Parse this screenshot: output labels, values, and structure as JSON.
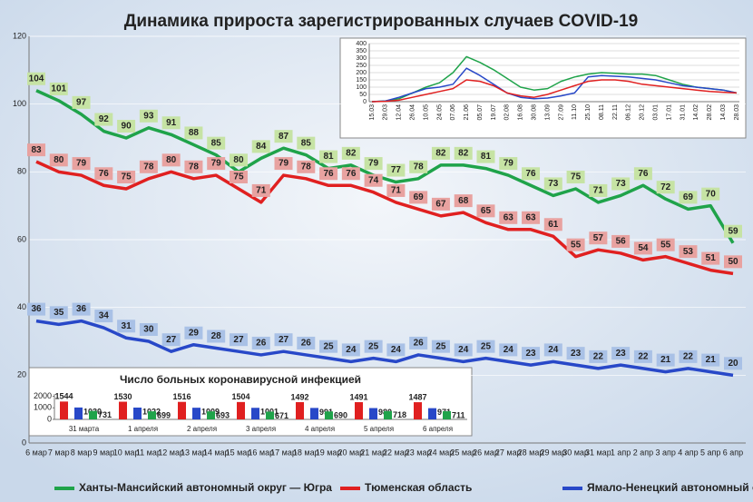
{
  "chart_data": [
    {
      "type": "line",
      "title": "Динамика прироста зарегистрированных случаев COVID-19",
      "categories": [
        "6 мар",
        "7 мар",
        "8 мар",
        "9 мар",
        "10 мар",
        "11 мар",
        "12 мар",
        "13 мар",
        "14 мар",
        "15 мар",
        "16 мар",
        "17 мар",
        "18 мар",
        "19 мар",
        "20 мар",
        "21 мар",
        "22 мар",
        "23 мар",
        "24 мар",
        "25 мар",
        "26 мар",
        "27 мар",
        "28 мар",
        "29 мар",
        "30 мар",
        "31 мар",
        "1 апр",
        "2 апр",
        "3 апр",
        "4 апр",
        "5 апр",
        "6 апр"
      ],
      "series": [
        {
          "name": "Ханты-Мансийский автономный округ — Югра",
          "color": "#1fa34a",
          "label_color": "#c6e3a4",
          "values": [
            104,
            101,
            97,
            92,
            90,
            93,
            91,
            88,
            85,
            80,
            84,
            87,
            85,
            81,
            82,
            79,
            77,
            78,
            82,
            82,
            81,
            79,
            76,
            73,
            75,
            71,
            73,
            76,
            72,
            69,
            70,
            59
          ]
        },
        {
          "name": "Тюменская область",
          "color": "#e02020",
          "label_color": "#e8a2a0",
          "values": [
            83,
            80,
            79,
            76,
            75,
            78,
            80,
            78,
            79,
            75,
            71,
            79,
            78,
            76,
            76,
            74,
            71,
            69,
            67,
            68,
            65,
            63,
            63,
            61,
            55,
            57,
            56,
            54,
            55,
            53,
            51,
            50
          ]
        },
        {
          "name": "Ямало-Ненецкий автономный округ",
          "color": "#2848c8",
          "label_color": "#a9c1e6",
          "values": [
            36,
            35,
            36,
            34,
            31,
            30,
            27,
            29,
            28,
            27,
            26,
            27,
            26,
            25,
            24,
            25,
            24,
            26,
            25,
            24,
            25,
            24,
            23,
            24,
            23,
            22,
            23,
            22,
            21,
            22,
            21,
            20
          ]
        }
      ],
      "ylim": [
        0,
        120
      ],
      "yticks": [
        0,
        20,
        40,
        60,
        80,
        100,
        120
      ],
      "grid": true,
      "legend": "bottom"
    },
    {
      "type": "line",
      "categories": [
        "15.03",
        "29.03",
        "12.04",
        "26.04",
        "10.05",
        "24.05",
        "07.06",
        "21.06",
        "05.07",
        "19.07",
        "02.08",
        "16.08",
        "30.08",
        "13.09",
        "27.09",
        "11.10",
        "25.10",
        "08.11",
        "22.11",
        "06.12",
        "20.12",
        "03.01",
        "17.01",
        "31.01",
        "14.02",
        "28.02",
        "14.03",
        "28.03"
      ],
      "series": [
        {
          "color": "#1fa34a",
          "values": [
            0,
            5,
            20,
            60,
            100,
            130,
            200,
            310,
            270,
            220,
            160,
            100,
            80,
            90,
            140,
            170,
            190,
            200,
            195,
            190,
            190,
            180,
            150,
            120,
            100,
            90,
            80,
            60
          ]
        },
        {
          "color": "#2848c8",
          "values": [
            0,
            5,
            30,
            60,
            90,
            100,
            120,
            230,
            180,
            120,
            60,
            30,
            20,
            25,
            40,
            60,
            170,
            180,
            175,
            170,
            160,
            150,
            130,
            110,
            100,
            90,
            80,
            60
          ]
        },
        {
          "color": "#e02020",
          "values": [
            0,
            2,
            10,
            30,
            50,
            70,
            90,
            150,
            140,
            110,
            60,
            40,
            30,
            50,
            80,
            110,
            140,
            150,
            150,
            140,
            120,
            110,
            100,
            90,
            80,
            70,
            65,
            60
          ]
        }
      ],
      "ylim": [
        0,
        400
      ],
      "yticks": [
        0,
        50,
        100,
        150,
        200,
        250,
        300,
        350,
        400
      ],
      "grid": true
    },
    {
      "type": "bar",
      "title": "Число больных коронавирусной инфекцией",
      "categories": [
        "31 марта",
        "1 апреля",
        "2 апреля",
        "3 апреля",
        "4 апреля",
        "5 апреля",
        "6 апреля"
      ],
      "series": [
        {
          "color": "#e02020",
          "values": [
            1544,
            1530,
            1516,
            1504,
            1492,
            1491,
            1487
          ]
        },
        {
          "color": "#2848c8",
          "values": [
            1030,
            1022,
            1009,
            1001,
            991,
            980,
            971
          ]
        },
        {
          "color": "#1fa34a",
          "values": [
            731,
            699,
            693,
            671,
            690,
            718,
            711
          ]
        }
      ],
      "ylim": [
        0,
        2200
      ],
      "yticks": [
        0,
        1000,
        2000
      ]
    }
  ]
}
